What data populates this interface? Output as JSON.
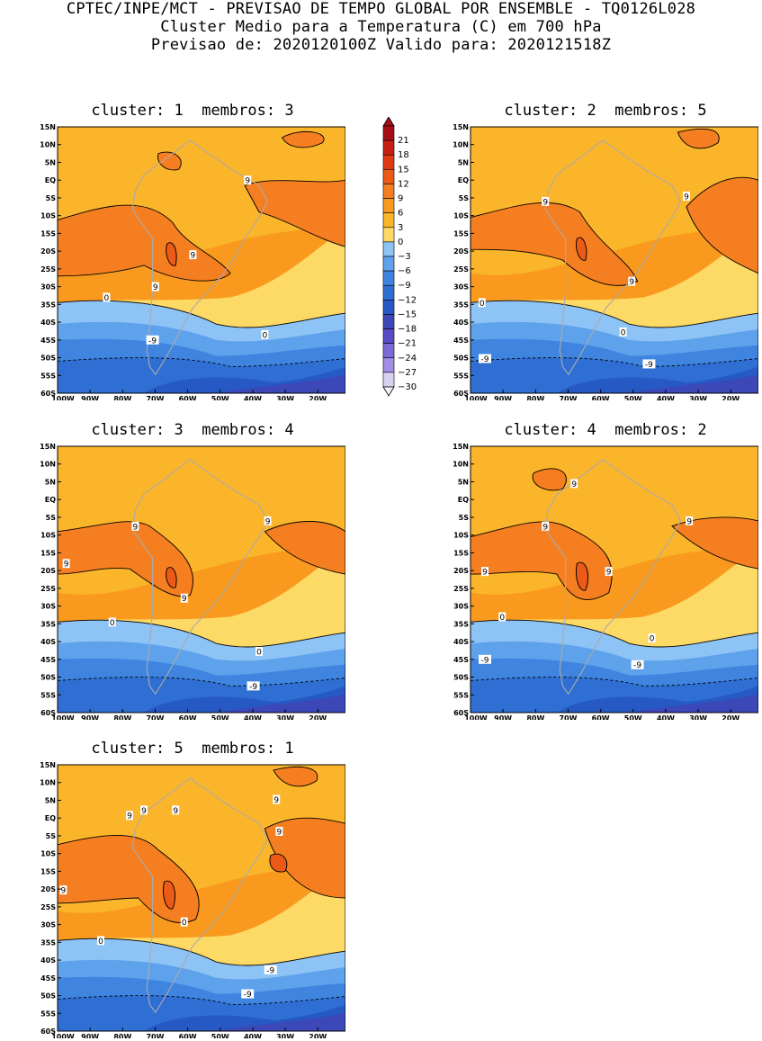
{
  "header": {
    "line1": "CPTEC/INPE/MCT - PREVISAO DE TEMPO GLOBAL POR ENSEMBLE - TQ0126L028",
    "line2": "Cluster Medio para a Temperatura (C) em 700 hPa",
    "line3": "Previsao de: 2020120100Z   Valido para: 2020121518Z"
  },
  "axes": {
    "lat_labels": [
      "15N",
      "10N",
      "5N",
      "EQ",
      "5S",
      "10S",
      "15S",
      "20S",
      "25S",
      "30S",
      "35S",
      "40S",
      "45S",
      "50S",
      "55S",
      "60S"
    ],
    "lon_labels": [
      "100W",
      "90W",
      "80W",
      "70W",
      "60W",
      "50W",
      "40W",
      "30W",
      "20W"
    ]
  },
  "colorbar": {
    "labels": [
      "21",
      "18",
      "15",
      "12",
      "9",
      "6",
      "3",
      "0",
      "-3",
      "-6",
      "-9",
      "-12",
      "-15",
      "-18",
      "-21",
      "-24",
      "-27",
      "-30"
    ],
    "colors": [
      "#a50f15",
      "#c81e14",
      "#e03a14",
      "#ec5a18",
      "#f57f20",
      "#f99a1e",
      "#fbb52a",
      "#fdd966",
      "#8ec3f5",
      "#5fa2ec",
      "#3f85e0",
      "#2f6fd4",
      "#2659c4",
      "#3c47b8",
      "#5a4cc6",
      "#7d6ad6",
      "#a38fe3",
      "#d8d2f2"
    ]
  },
  "panels": [
    {
      "title": "cluster: 1  membros: 3",
      "labels": [
        "9",
        "9",
        "9",
        "0",
        "0",
        "-9"
      ]
    },
    {
      "title": "cluster: 2  membros: 5",
      "labels": [
        "9",
        "9",
        "9",
        "0",
        "0",
        "-9",
        "-9"
      ]
    },
    {
      "title": "cluster: 3  membros: 4",
      "labels": [
        "9",
        "9",
        "9",
        "9",
        "0",
        "0",
        "-9"
      ]
    },
    {
      "title": "cluster: 4  membros: 2",
      "labels": [
        "9",
        "9",
        "9",
        "9",
        "9",
        "0",
        "0",
        "-9",
        "-9"
      ]
    },
    {
      "title": "cluster: 5  membros: 1",
      "labels": [
        "9",
        "9",
        "9",
        "9",
        "9",
        "9",
        "0",
        "0",
        "-9",
        "-9"
      ]
    }
  ]
}
